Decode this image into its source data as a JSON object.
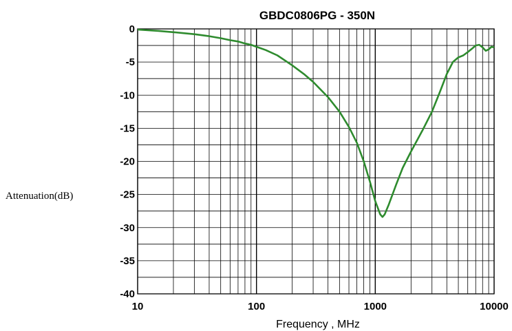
{
  "chart_data": {
    "type": "line",
    "title": "GBDC0806PG - 350N",
    "xlabel": "Frequency , MHz",
    "ylabel": "Attenuation(dB)",
    "x_scale": "log",
    "xlim": [
      10,
      10000
    ],
    "ylim": [
      -40,
      0
    ],
    "x_ticks": [
      "10",
      "100",
      "1000",
      "10000"
    ],
    "y_ticks": [
      "0",
      "-5",
      "-10",
      "-15",
      "-20",
      "-25",
      "-30",
      "-35",
      "-40"
    ],
    "grid": true,
    "line_color": "#2e8b2e",
    "series": [
      {
        "x": [
          10,
          15,
          20,
          30,
          40,
          50,
          60,
          70,
          80,
          90,
          100,
          120,
          150,
          200,
          250,
          300,
          400,
          500,
          600,
          700,
          800,
          900,
          1000,
          1100,
          1150,
          1200,
          1300,
          1500,
          1700,
          2000,
          2500,
          3000,
          3500,
          4000,
          4500,
          5000,
          5500,
          6000,
          6500,
          7000,
          7500,
          8000,
          8500,
          9000,
          9500,
          10000
        ],
        "y": [
          -0.1,
          -0.3,
          -0.5,
          -0.8,
          -1.1,
          -1.4,
          -1.7,
          -1.9,
          -2.2,
          -2.4,
          -2.7,
          -3.2,
          -4.0,
          -5.5,
          -6.8,
          -8.0,
          -10.3,
          -12.5,
          -14.8,
          -17.2,
          -20.0,
          -23.0,
          -26.0,
          -28.0,
          -28.4,
          -28.0,
          -26.5,
          -23.5,
          -21.0,
          -18.5,
          -15.3,
          -12.5,
          -9.5,
          -6.8,
          -5.0,
          -4.3,
          -4.0,
          -3.5,
          -3.0,
          -2.5,
          -2.4,
          -2.8,
          -3.3,
          -3.1,
          -2.7,
          -2.8
        ]
      }
    ]
  }
}
